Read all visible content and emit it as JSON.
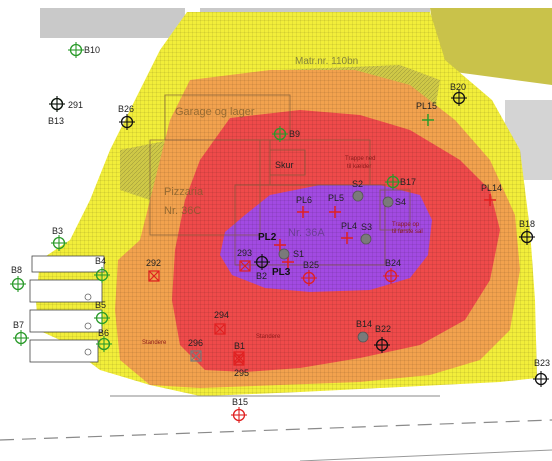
{
  "map": {
    "colors": {
      "yellow": "#f2ee3a",
      "olive": "#c9c24a",
      "orange": "#f2a24e",
      "red": "#ef4a4a",
      "purple": "#a24ae2",
      "green_marker": "#2a9a2a",
      "red_marker": "#e02020",
      "grey_marker": "#7a7a7a"
    },
    "building_labels": {
      "matr": "Matr.nr. 110bn",
      "garage": "Garage og lager",
      "pizzaria": "Pizzaria",
      "nr36c": "Nr. 36C",
      "nr36a": "Nr. 36A",
      "skur": "Skur",
      "trappe_ned_line1": "Trappe ned",
      "trappe_ned_line2": "til kælder",
      "trappe_op_line1": "Trappe op",
      "trappe_op_line2": "til første sal",
      "standere_left": "Standere",
      "standere_right": "Standere"
    },
    "points": [
      {
        "id": "B10",
        "label": "B10",
        "type": "green-cross"
      },
      {
        "id": "B13",
        "label": "B13",
        "type": "green-cross"
      },
      {
        "id": "291",
        "label": "291",
        "type": "grey-cross"
      },
      {
        "id": "B26",
        "label": "B26",
        "type": "black-cross"
      },
      {
        "id": "B9",
        "label": "B9",
        "type": "green-cross"
      },
      {
        "id": "B20",
        "label": "B20",
        "type": "black-cross"
      },
      {
        "id": "PL15",
        "label": "PL15",
        "type": "plus-green"
      },
      {
        "id": "B17",
        "label": "B17",
        "type": "green-cross"
      },
      {
        "id": "PL14",
        "label": "PL14",
        "type": "plus-red"
      },
      {
        "id": "B18",
        "label": "B18",
        "type": "black-cross"
      },
      {
        "id": "S2",
        "label": "S2",
        "type": "grey-dot"
      },
      {
        "id": "S4",
        "label": "S4",
        "type": "grey-dot"
      },
      {
        "id": "PL6",
        "label": "PL6",
        "type": "plus-red"
      },
      {
        "id": "PL5",
        "label": "PL5",
        "type": "plus-red"
      },
      {
        "id": "PL4",
        "label": "PL4",
        "type": "plus-red"
      },
      {
        "id": "S3",
        "label": "S3",
        "type": "grey-dot"
      },
      {
        "id": "B3",
        "label": "B3",
        "type": "green-cross"
      },
      {
        "id": "B8",
        "label": "B8",
        "type": "green-cross"
      },
      {
        "id": "B4",
        "label": "B4",
        "type": "green-cross"
      },
      {
        "id": "292",
        "label": "292",
        "type": "red-x"
      },
      {
        "id": "293",
        "label": "293",
        "type": "red-x"
      },
      {
        "id": "B2",
        "label": "B2",
        "type": "black-cross"
      },
      {
        "id": "PL2",
        "label": "PL2",
        "type": "plus-red"
      },
      {
        "id": "PL3",
        "label": "PL3",
        "type": "plus-red"
      },
      {
        "id": "S1",
        "label": "S1",
        "type": "grey-dot"
      },
      {
        "id": "B25",
        "label": "B25",
        "type": "red-cross"
      },
      {
        "id": "B24",
        "label": "B24",
        "type": "red-cross"
      },
      {
        "id": "B5",
        "label": "B5",
        "type": "green-cross"
      },
      {
        "id": "B7",
        "label": "B7",
        "type": "green-cross"
      },
      {
        "id": "B6",
        "label": "B6",
        "type": "green-cross"
      },
      {
        "id": "294",
        "label": "294",
        "type": "red-x"
      },
      {
        "id": "296",
        "label": "296",
        "type": "grey-x"
      },
      {
        "id": "B1",
        "label": "B1",
        "type": "red-x"
      },
      {
        "id": "295",
        "label": "295",
        "type": "red-x"
      },
      {
        "id": "B14",
        "label": "B14",
        "type": "grey-dot"
      },
      {
        "id": "B22",
        "label": "B22",
        "type": "black-cross"
      },
      {
        "id": "B23",
        "label": "B23",
        "type": "black-cross"
      },
      {
        "id": "B15",
        "label": "B15",
        "type": "red-cross"
      }
    ]
  }
}
